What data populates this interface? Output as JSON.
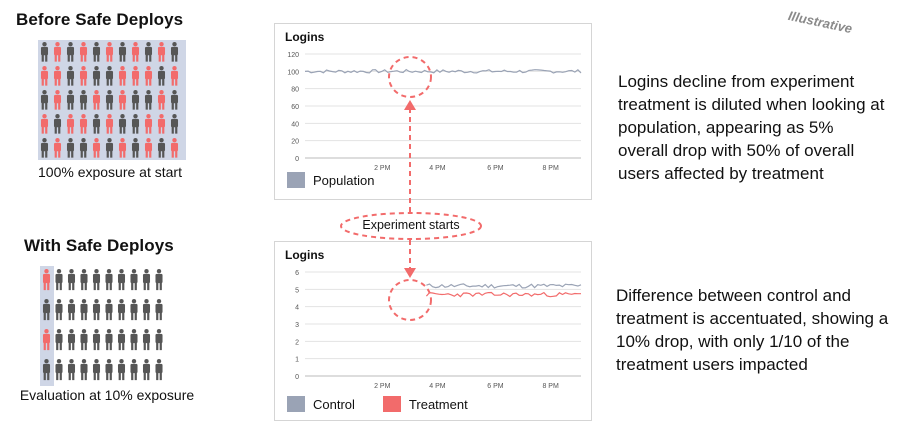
{
  "colors": {
    "accent": "#f26b6b",
    "dark": "#565656",
    "population": "#9aa3b5",
    "control": "#9aa3b5",
    "treatment": "#f26b6b",
    "grid": "#e3e3e3"
  },
  "left": {
    "before_title": "Before Safe Deploys",
    "before_caption": "100% exposure at start",
    "after_title": "With Safe Deploys",
    "after_caption": "Evaluation at 10% exposure"
  },
  "tag": "Illustrative",
  "callout": "Experiment starts",
  "chart_top": {
    "title": "Logins",
    "y_ticks": [
      "120",
      "100",
      "80",
      "60",
      "40",
      "20",
      "0"
    ],
    "x_ticks": [
      "2 PM",
      "4 PM",
      "6 PM",
      "8 PM"
    ],
    "legend": "Population",
    "description": "Logins decline from experiment treatment is diluted when looking at population, appearing as 5% overall drop with 50% of overall users affected by treatment"
  },
  "chart_bottom": {
    "title": "Logins",
    "y_ticks": [
      "6",
      "5",
      "4",
      "3",
      "2",
      "1",
      "0"
    ],
    "x_ticks": [
      "2 PM",
      "4 PM",
      "6 PM",
      "8 PM"
    ],
    "legend_control": "Control",
    "legend_treatment": "Treatment",
    "description": "Difference between control and treatment is accentuated, showing a 10% drop, with only 1/10 of the treatment users impacted"
  },
  "chart_data": [
    {
      "type": "line",
      "title": "Logins",
      "x_ticks": [
        "2 PM",
        "4 PM",
        "6 PM",
        "8 PM"
      ],
      "ylim": [
        0,
        120
      ],
      "series": [
        {
          "name": "Population",
          "approx_level": 100
        }
      ]
    },
    {
      "type": "line",
      "title": "Logins",
      "x_ticks": [
        "2 PM",
        "4 PM",
        "6 PM",
        "8 PM"
      ],
      "ylim": [
        0,
        6
      ],
      "series": [
        {
          "name": "Control",
          "approx_level": 5.2
        },
        {
          "name": "Treatment",
          "approx_level": 4.7
        }
      ]
    }
  ]
}
